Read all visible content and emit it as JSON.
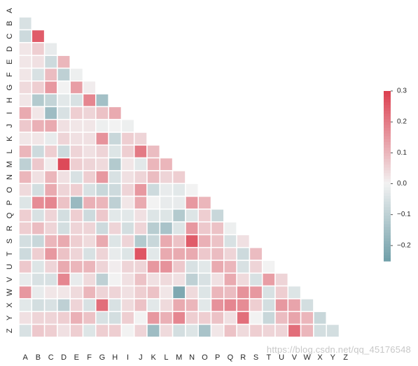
{
  "chart_data": {
    "type": "heatmap",
    "title": "",
    "xlabel": "",
    "ylabel": "",
    "mask": "upper-triangle-including-diagonal",
    "labels": [
      "A",
      "B",
      "C",
      "D",
      "E",
      "F",
      "G",
      "H",
      "I",
      "J",
      "K",
      "L",
      "M",
      "N",
      "O",
      "P",
      "Q",
      "R",
      "S",
      "T",
      "U",
      "V",
      "W",
      "X",
      "Y",
      "Z"
    ],
    "colormap": {
      "type": "diverging",
      "low": "#6f9ea8",
      "center": "#f2f2f2",
      "high": "#dc3e4e",
      "vmin": -0.25,
      "vmax": 0.3,
      "center_value": 0.0
    },
    "colorbar": {
      "ticks": [
        -0.2,
        -0.1,
        0.0,
        0.1,
        0.2,
        0.3
      ],
      "tick_labels": [
        "−0.2",
        "−0.1",
        "0.0",
        "0.1",
        "0.2",
        "0.3"
      ]
    },
    "values": [
      [],
      [
        -0.05
      ],
      [
        -0.07,
        0.25
      ],
      [
        0.02,
        0.06,
        -0.02
      ],
      [
        0.02,
        0.03,
        -0.07,
        0.1
      ],
      [
        0.02,
        -0.05,
        0.09,
        -0.1,
        -0.01
      ],
      [
        0.04,
        0.06,
        0.15,
        0.0,
        0.14,
        0.01
      ],
      [
        0.02,
        -0.12,
        -0.09,
        -0.03,
        -0.05,
        0.18,
        -0.15
      ],
      [
        0.12,
        0.02,
        -0.16,
        -0.05,
        0.06,
        0.05,
        0.08,
        0.12
      ],
      [
        0.07,
        0.11,
        0.12,
        0.03,
        0.02,
        0.02,
        -0.01,
        0.0,
        -0.01
      ],
      [
        0.02,
        0.02,
        -0.02,
        0.05,
        0.03,
        0.03,
        0.16,
        -0.08,
        0.06,
        0.05
      ],
      [
        0.1,
        -0.07,
        0.06,
        -0.07,
        0.05,
        0.03,
        0.05,
        -0.04,
        0.06,
        0.2,
        0.09
      ],
      [
        -0.1,
        0.07,
        0.01,
        0.28,
        0.06,
        0.05,
        0.04,
        -0.12,
        0.02,
        -0.03,
        0.1,
        0.1
      ],
      [
        0.1,
        0.03,
        0.1,
        0.03,
        -0.05,
        0.06,
        0.15,
        -0.05,
        0.03,
        0.05,
        0.09,
        0.05,
        0.06
      ],
      [
        0.04,
        -0.06,
        0.12,
        0.05,
        0.06,
        -0.05,
        -0.08,
        -0.07,
        0.05,
        0.15,
        -0.07,
        -0.02,
        -0.03,
        0.0
      ],
      [
        -0.04,
        0.17,
        0.18,
        0.08,
        -0.17,
        0.11,
        0.1,
        -0.1,
        0.02,
        0.12,
        0.0,
        -0.02,
        -0.02,
        0.15,
        0.1
      ],
      [
        0.06,
        -0.05,
        0.05,
        -0.06,
        0.06,
        -0.07,
        0.07,
        -0.03,
        -0.03,
        0.03,
        -0.04,
        -0.04,
        -0.12,
        -0.04,
        0.06,
        -0.08
      ],
      [
        0.06,
        0.09,
        0.05,
        -0.06,
        0.05,
        0.05,
        -0.07,
        0.05,
        -0.06,
        0.05,
        -0.11,
        -0.14,
        -0.04,
        0.15,
        0.07,
        0.08,
        -0.01
      ],
      [
        -0.06,
        -0.08,
        0.1,
        0.12,
        0.06,
        0.04,
        0.12,
        -0.04,
        0.05,
        -0.12,
        -0.08,
        0.12,
        0.08,
        0.25,
        0.11,
        0.08,
        -0.05,
        0.03
      ],
      [
        -0.07,
        0.06,
        0.15,
        0.08,
        0.05,
        -0.05,
        0.05,
        -0.02,
        -0.04,
        0.26,
        -0.03,
        0.12,
        0.12,
        0.12,
        0.07,
        0.09,
        0.05,
        -0.07,
        0.09
      ],
      [
        0.07,
        -0.04,
        0.05,
        0.12,
        0.1,
        0.1,
        0.05,
        0.01,
        0.05,
        0.05,
        0.15,
        0.16,
        0.07,
        -0.05,
        -0.03,
        0.12,
        0.1,
        -0.05,
        0.05,
        0.0
      ],
      [
        -0.02,
        -0.05,
        -0.05,
        0.18,
        -0.02,
        0.04,
        -0.1,
        0.0,
        0.03,
        0.08,
        0.03,
        0.04,
        0.03,
        -0.1,
        -0.05,
        0.03,
        0.12,
        0.04,
        -0.05,
        0.14,
        0.05
      ],
      [
        0.15,
        -0.02,
        0.02,
        0.02,
        0.04,
        0.1,
        0.05,
        0.05,
        0.03,
        0.06,
        0.08,
        0.02,
        -0.22,
        0.04,
        -0.04,
        0.1,
        0.09,
        0.16,
        0.15,
        -0.05,
        0.06,
        -0.04
      ],
      [
        -0.03,
        -0.06,
        -0.05,
        -0.1,
        0.05,
        -0.05,
        0.22,
        -0.05,
        0.04,
        0.08,
        -0.03,
        0.04,
        0.12,
        0.1,
        -0.03,
        0.16,
        0.18,
        0.17,
        0.06,
        -0.06,
        0.15,
        0.13,
        -0.06
      ],
      [
        0.03,
        0.05,
        0.05,
        0.06,
        0.11,
        0.08,
        -0.05,
        -0.06,
        0.06,
        0.0,
        0.15,
        0.11,
        0.18,
        0.06,
        0.06,
        0.08,
        0.03,
        0.22,
        0.0,
        -0.08,
        0.09,
        0.13,
        0.1,
        -0.08
      ],
      [
        -0.05,
        0.07,
        0.06,
        0.03,
        0.06,
        -0.04,
        0.06,
        0.06,
        0.0,
        0.05,
        -0.16,
        0.04,
        -0.06,
        -0.04,
        -0.14,
        0.02,
        0.08,
        0.04,
        0.06,
        0.05,
        0.05,
        0.22,
        0.1,
        -0.06,
        -0.06
      ]
    ]
  },
  "watermark": "https://blog.csdn.net/qq_45176548"
}
